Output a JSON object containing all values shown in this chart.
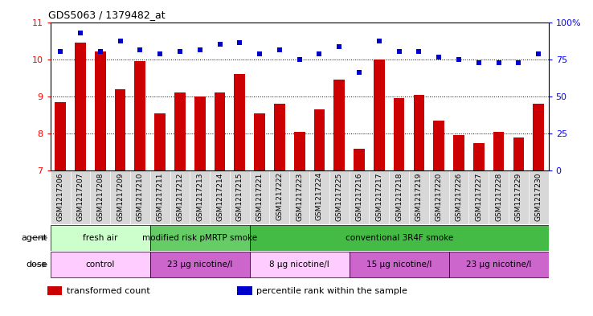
{
  "title": "GDS5063 / 1379482_at",
  "categories": [
    "GSM1217206",
    "GSM1217207",
    "GSM1217208",
    "GSM1217209",
    "GSM1217210",
    "GSM1217211",
    "GSM1217212",
    "GSM1217213",
    "GSM1217214",
    "GSM1217215",
    "GSM1217221",
    "GSM1217222",
    "GSM1217223",
    "GSM1217224",
    "GSM1217225",
    "GSM1217216",
    "GSM1217217",
    "GSM1217218",
    "GSM1217219",
    "GSM1217220",
    "GSM1217226",
    "GSM1217227",
    "GSM1217228",
    "GSM1217229",
    "GSM1217230"
  ],
  "bar_values": [
    8.85,
    10.45,
    10.2,
    9.2,
    9.95,
    8.55,
    9.1,
    9.0,
    9.1,
    9.6,
    8.55,
    8.8,
    8.05,
    8.65,
    9.45,
    7.6,
    10.0,
    8.95,
    9.05,
    8.35,
    7.95,
    7.75,
    8.05,
    7.9,
    8.8
  ],
  "scatter_values": [
    10.2,
    10.7,
    10.2,
    10.5,
    10.25,
    10.15,
    10.2,
    10.25,
    10.4,
    10.45,
    10.15,
    10.25,
    10.0,
    10.15,
    10.35,
    9.65,
    10.5,
    10.2,
    10.2,
    10.05,
    10.0,
    9.9,
    9.9,
    9.9,
    10.15
  ],
  "bar_color": "#cc0000",
  "scatter_color": "#0000cc",
  "ylim_left": [
    7,
    11
  ],
  "ylim_right": [
    0,
    100
  ],
  "yticks_left": [
    7,
    8,
    9,
    10,
    11
  ],
  "yticks_right": [
    0,
    25,
    50,
    75,
    100
  ],
  "ytick_labels_right": [
    "0",
    "25",
    "50",
    "75",
    "100%"
  ],
  "agent_groups": [
    {
      "label": "fresh air",
      "start": 0,
      "end": 5,
      "color": "#ccffcc"
    },
    {
      "label": "modified risk pMRTP smoke",
      "start": 5,
      "end": 10,
      "color": "#66cc66"
    },
    {
      "label": "conventional 3R4F smoke",
      "start": 10,
      "end": 25,
      "color": "#44bb44"
    }
  ],
  "dose_groups": [
    {
      "label": "control",
      "start": 0,
      "end": 5,
      "color": "#ffccff"
    },
    {
      "label": "23 μg nicotine/l",
      "start": 5,
      "end": 10,
      "color": "#cc66cc"
    },
    {
      "label": "8 μg nicotine/l",
      "start": 10,
      "end": 15,
      "color": "#ffccff"
    },
    {
      "label": "15 μg nicotine/l",
      "start": 15,
      "end": 20,
      "color": "#cc66cc"
    },
    {
      "label": "23 μg nicotine/l",
      "start": 20,
      "end": 25,
      "color": "#cc66cc"
    }
  ],
  "legend_items": [
    {
      "label": "transformed count",
      "color": "#cc0000"
    },
    {
      "label": "percentile rank within the sample",
      "color": "#0000cc"
    }
  ],
  "agent_label": "agent",
  "dose_label": "dose",
  "bar_width": 0.55,
  "hlines": [
    8,
    9,
    10
  ],
  "bg_color": "#ffffff",
  "tick_area_bg": "#dddddd"
}
